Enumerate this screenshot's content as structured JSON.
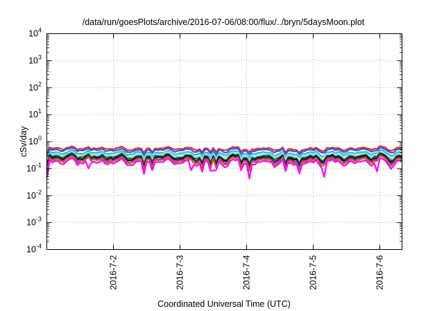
{
  "chart_data": {
    "type": "line",
    "title": "/data/run/goesPlots/archive/2016-07-06/08:00/flux/../bryn/5daysMoon.plot",
    "xlabel": "Coordinated Universal Time (UTC)",
    "ylabel": "cSv/day",
    "yscale": "log",
    "ylim": [
      0.0001,
      10000
    ],
    "y_ticks": [
      {
        "value": 0.0001,
        "base": "10",
        "exp": "-4"
      },
      {
        "value": 0.001,
        "base": "10",
        "exp": "-3"
      },
      {
        "value": 0.01,
        "base": "10",
        "exp": "-2"
      },
      {
        "value": 0.1,
        "base": "10",
        "exp": "-1"
      },
      {
        "value": 1,
        "base": "10",
        "exp": "0"
      },
      {
        "value": 10,
        "base": "10",
        "exp": "1"
      },
      {
        "value": 100,
        "base": "10",
        "exp": "2"
      },
      {
        "value": 1000,
        "base": "10",
        "exp": "3"
      },
      {
        "value": 10000,
        "base": "10",
        "exp": "4"
      }
    ],
    "xlim": [
      "2016-07-01T00:00",
      "2016-07-06T08:00"
    ],
    "x_ticks": [
      {
        "value": "2016-07-02T00:00",
        "label": "2016-7-2"
      },
      {
        "value": "2016-07-03T00:00",
        "label": "2016-7-3"
      },
      {
        "value": "2016-07-04T00:00",
        "label": "2016-7-4"
      },
      {
        "value": "2016-07-05T00:00",
        "label": "2016-7-5"
      },
      {
        "value": "2016-07-06T00:00",
        "label": "2016-7-6"
      }
    ],
    "grid": true,
    "legend": "none",
    "series": [
      {
        "color": "#e0302c",
        "base": 0.55
      },
      {
        "color": "#3a52e8",
        "base": 0.48
      },
      {
        "color": "#2bb7d4",
        "base": 0.38
      },
      {
        "color": "#7ff0e2",
        "base": 0.33
      },
      {
        "color": "#d2d2d2",
        "base": 0.3
      },
      {
        "color": "#1e6b2e",
        "base": 0.28
      },
      {
        "color": "#101010",
        "base": 0.25
      },
      {
        "color": "#7a2bc8",
        "base": 0.22
      },
      {
        "color": "#c46a20",
        "base": 0.2
      },
      {
        "color": "#ff00ff",
        "base": 0.17
      }
    ]
  }
}
